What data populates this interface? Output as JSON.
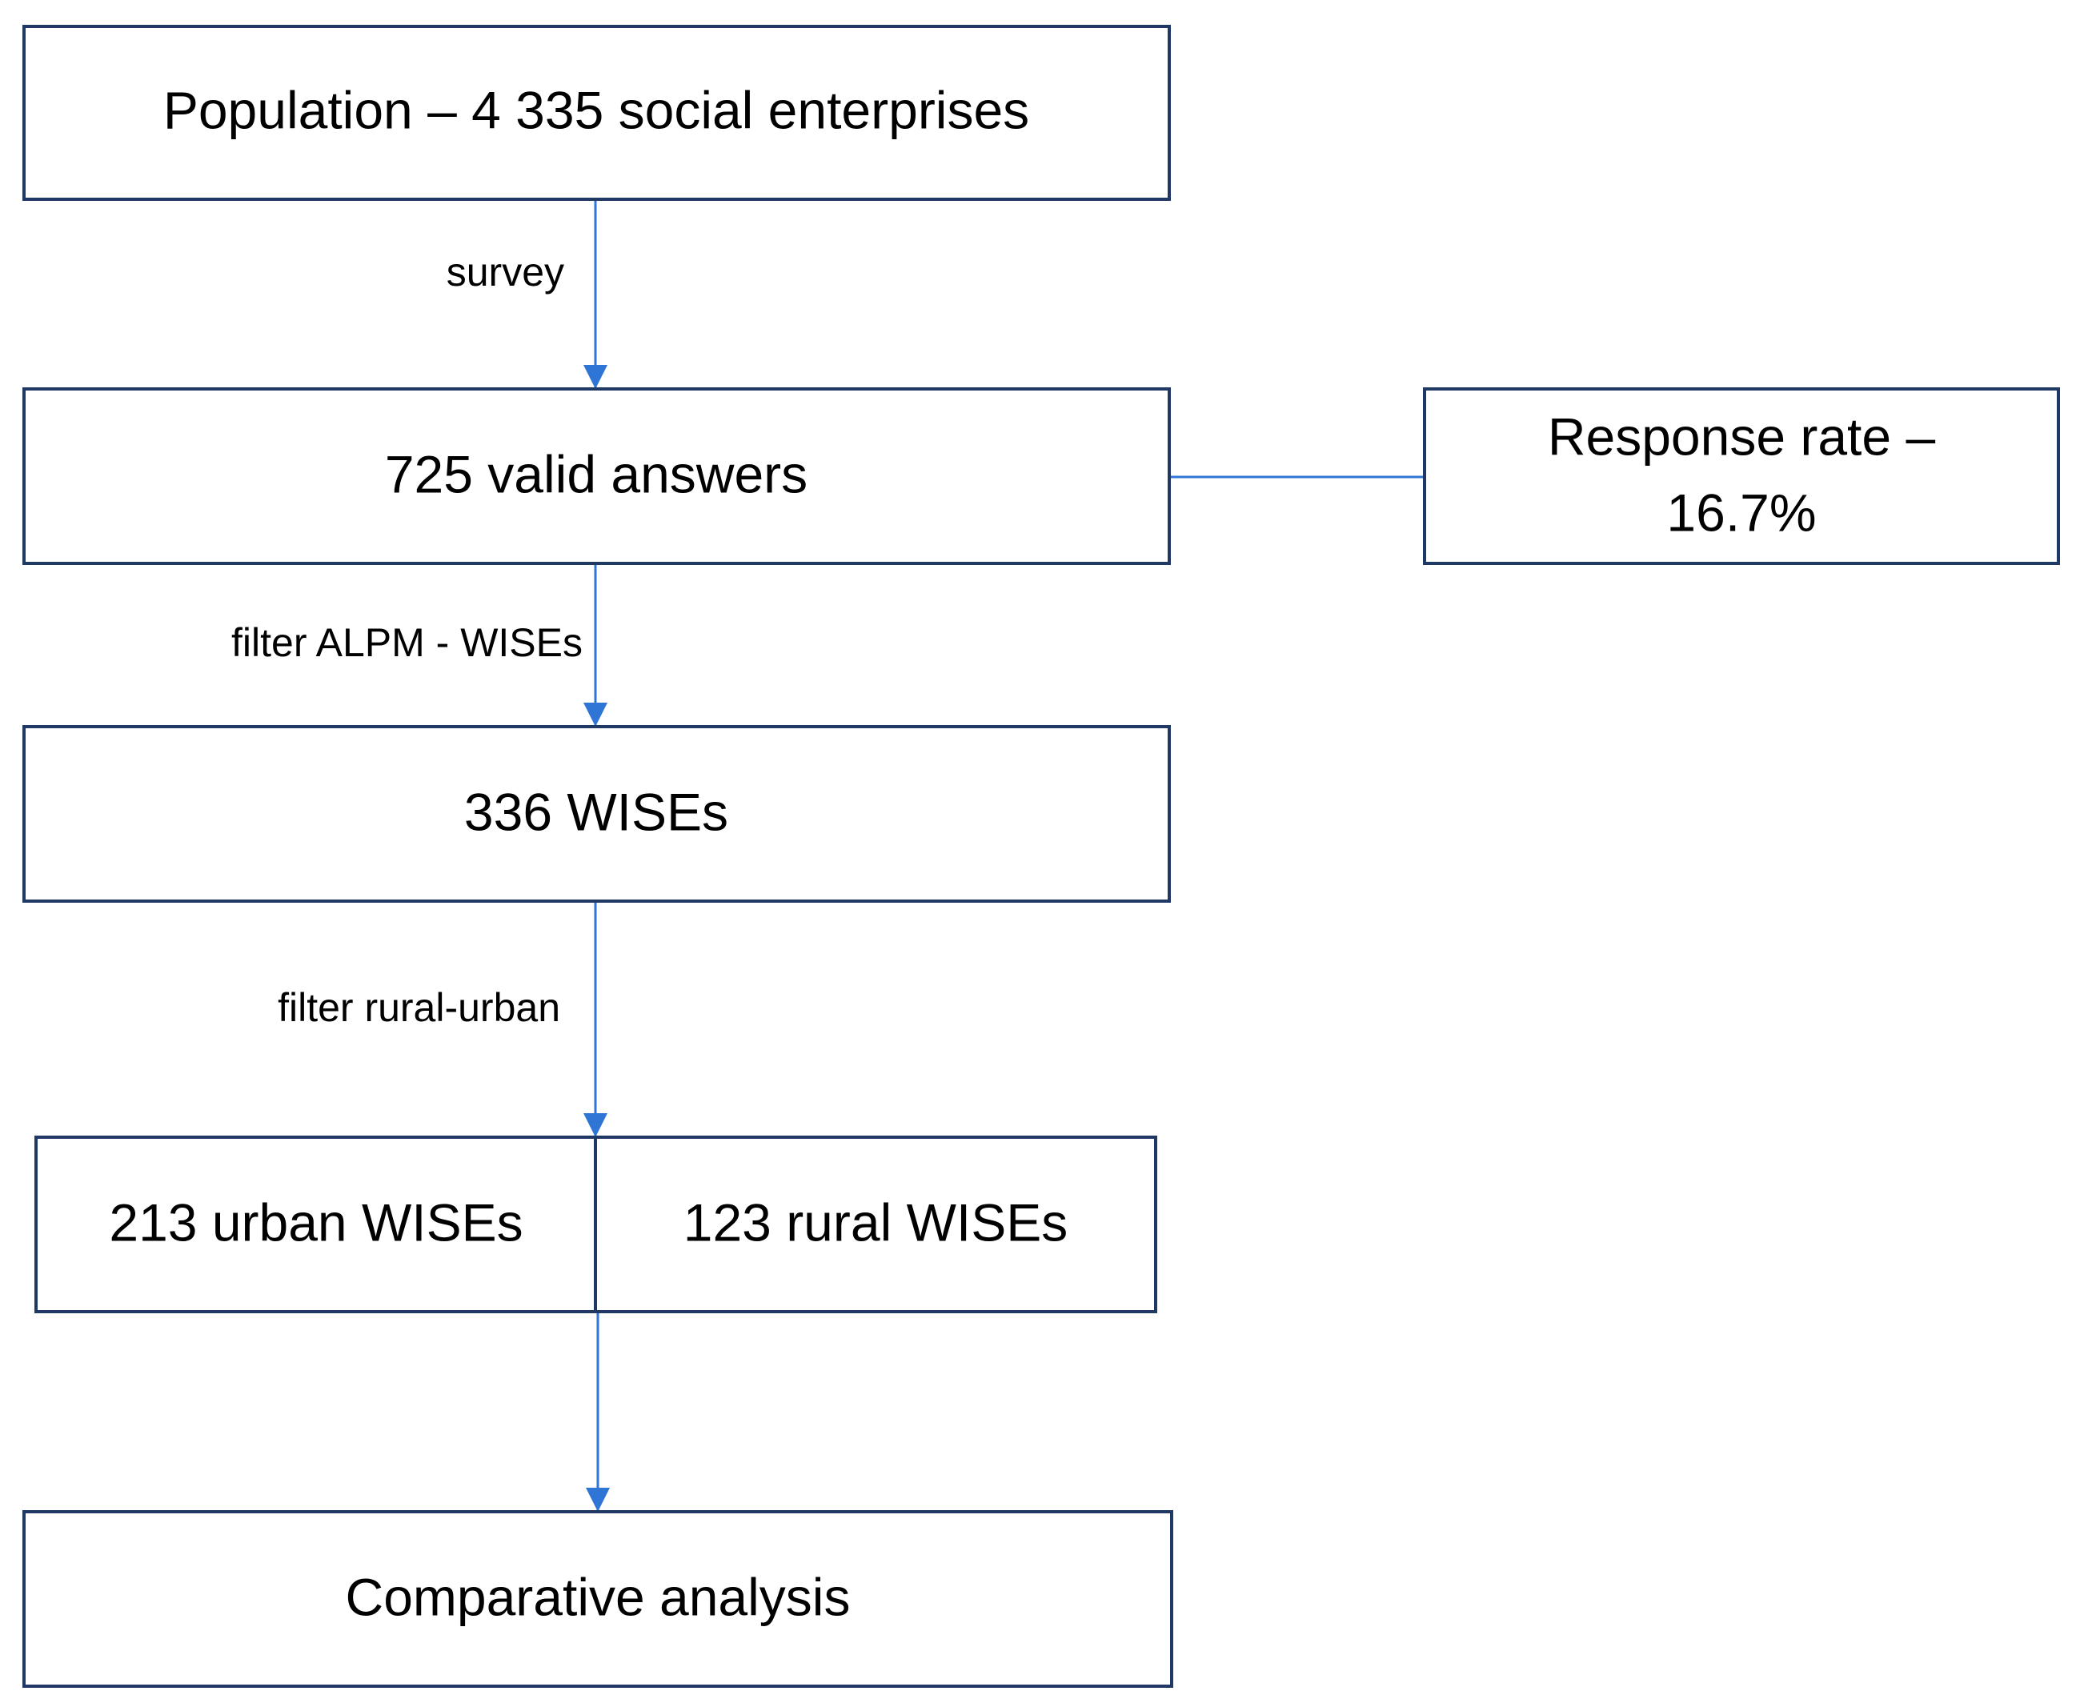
{
  "nodes": [
    {
      "label": "Population – 4 335 social enterprises"
    },
    {
      "label": "725 valid answers"
    },
    {
      "lines": [
        "Response rate –",
        "16.7%"
      ]
    },
    {
      "label": "336 WISEs"
    },
    {
      "label": "213 urban WISEs"
    },
    {
      "label": "123 rural WISEs"
    },
    {
      "label": "Comparative analysis"
    }
  ],
  "edges": [
    {
      "label": "survey"
    },
    {
      "label": "filter ALPM - WISEs"
    },
    {
      "label": "filter rural-urban"
    }
  ]
}
